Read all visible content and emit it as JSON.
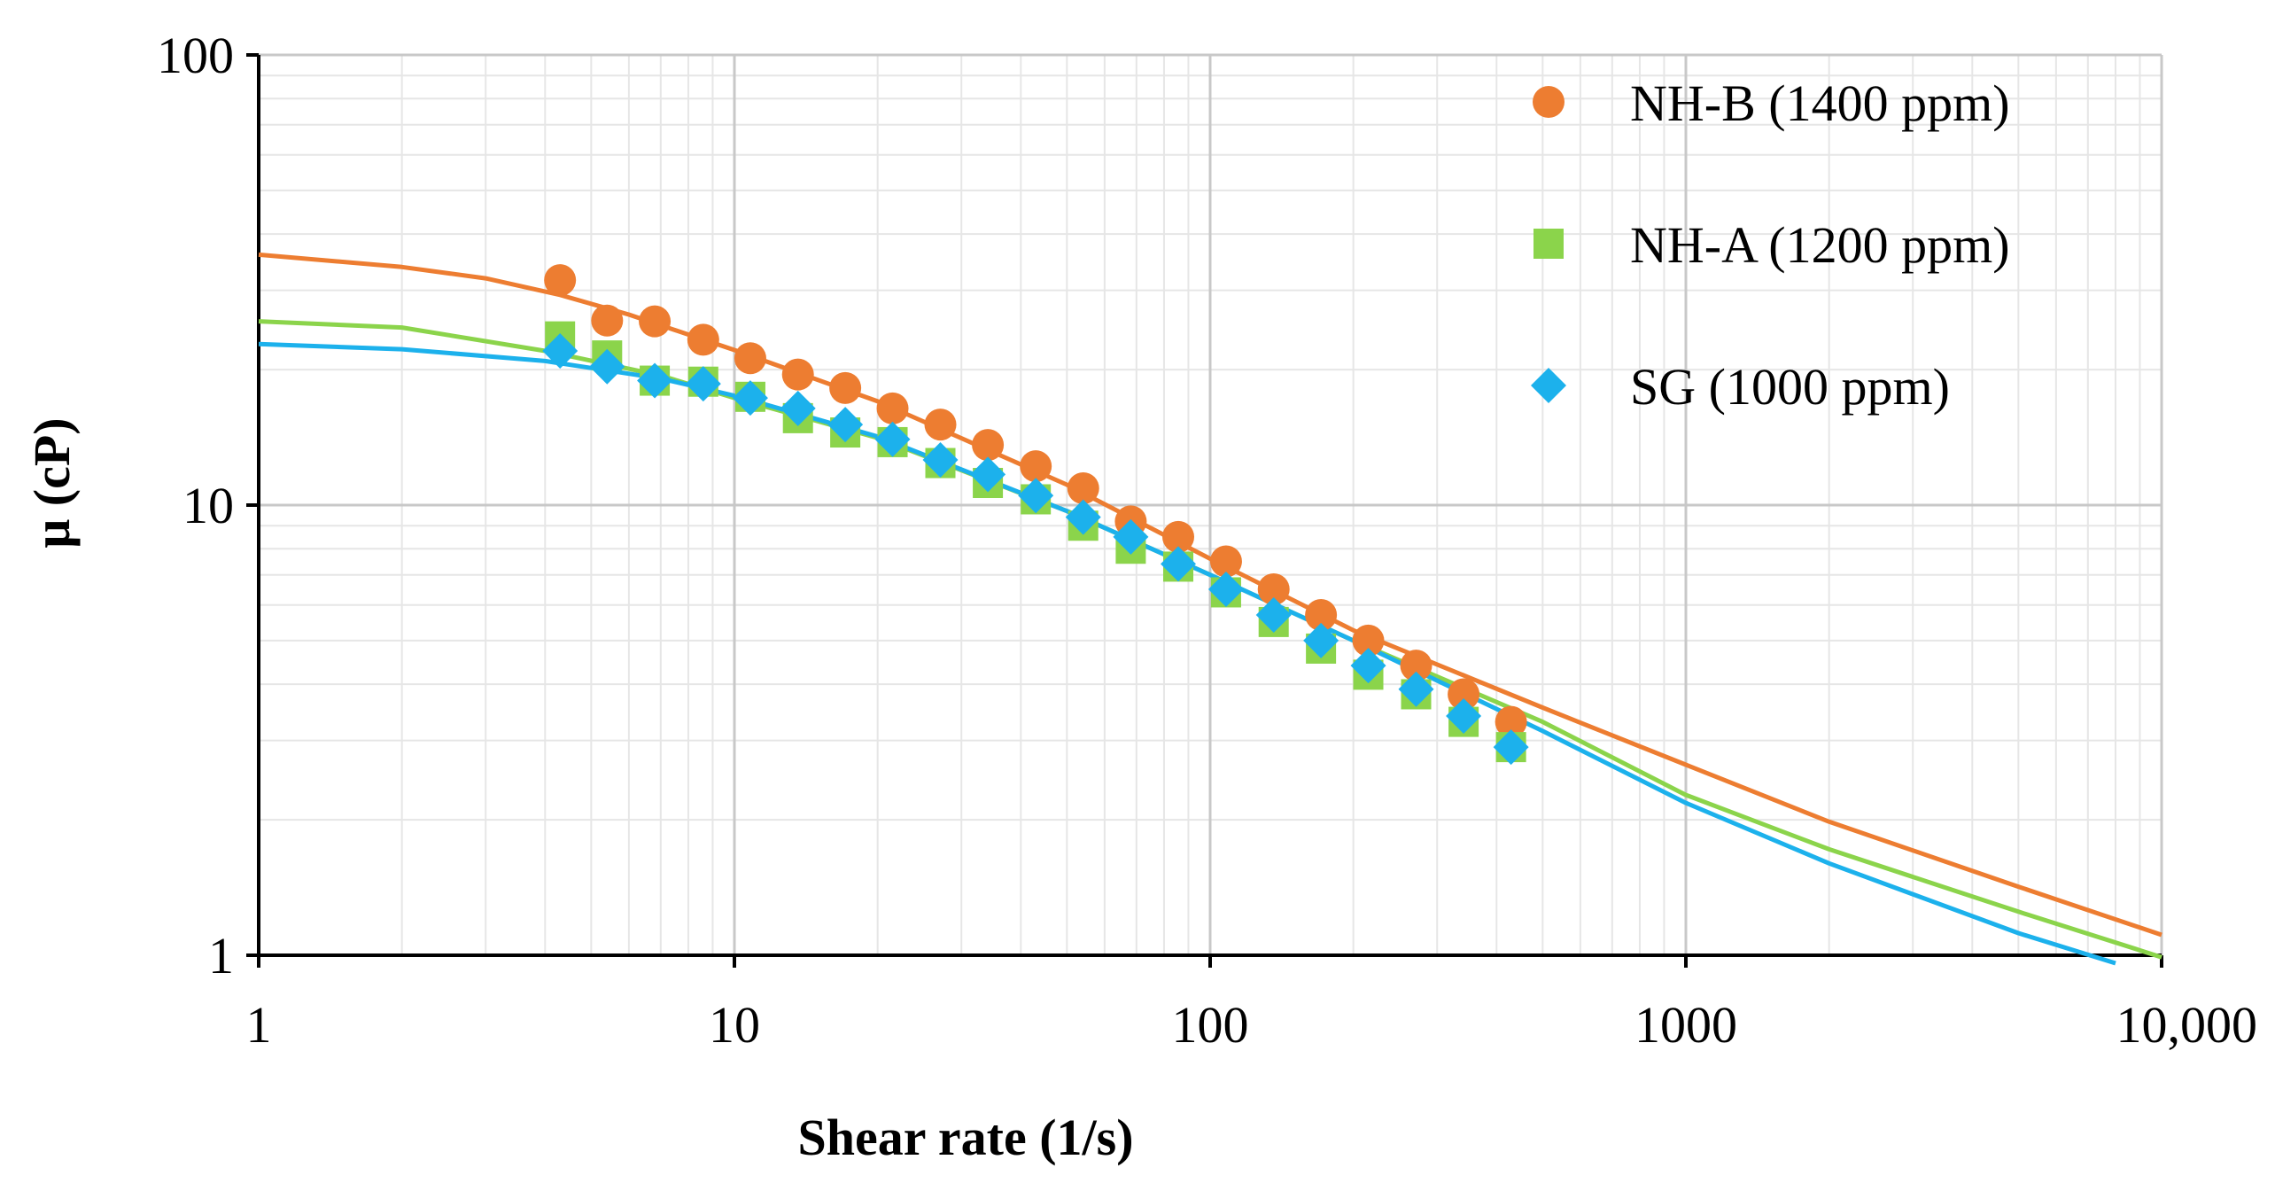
{
  "chart_data": {
    "type": "scatter",
    "xscale": "log",
    "yscale": "log",
    "xlim": [
      1,
      10000
    ],
    "ylim": [
      1,
      100
    ],
    "xlabel": "Shear rate (1/s)",
    "ylabel": "μ (cP)",
    "x_ticks": [
      {
        "value": 1,
        "label": "1"
      },
      {
        "value": 10,
        "label": "10"
      },
      {
        "value": 100,
        "label": "100"
      },
      {
        "value": 1000,
        "label": "1000"
      },
      {
        "value": 10000,
        "label": "10,000"
      }
    ],
    "y_ticks": [
      {
        "value": 1,
        "label": "1"
      },
      {
        "value": 10,
        "label": "10"
      },
      {
        "value": 100,
        "label": "100"
      }
    ],
    "grid": true,
    "legend_position": "top-right",
    "series": [
      {
        "name": "NH-B (1400 ppm)",
        "color": "#ED7D31",
        "marker": "circle",
        "x": [
          4.3,
          5.4,
          6.8,
          8.6,
          10.8,
          13.6,
          17.1,
          21.5,
          27.1,
          34.1,
          43,
          54.1,
          68.1,
          85.7,
          108,
          136,
          171,
          215,
          271,
          341,
          429
        ],
        "y": [
          31.6,
          25.7,
          25.6,
          23.3,
          21.2,
          19.5,
          18.2,
          16.4,
          15.1,
          13.6,
          12.2,
          10.9,
          9.2,
          8.5,
          7.5,
          6.5,
          5.7,
          5.0,
          4.4,
          3.8,
          3.3
        ],
        "fit_x": [
          1,
          2,
          3,
          4.3,
          6,
          10,
          20,
          50,
          100,
          200,
          500,
          1000,
          2000,
          5000,
          10000
        ],
        "fit_y": [
          36,
          33.8,
          31.9,
          29.3,
          26.5,
          22.1,
          17.0,
          11.1,
          7.6,
          5.27,
          3.55,
          2.65,
          1.98,
          1.42,
          1.11
        ]
      },
      {
        "name": "NH-A (1200 ppm)",
        "color": "#8BD44B",
        "marker": "square",
        "x": [
          4.3,
          5.4,
          6.8,
          8.6,
          10.8,
          13.6,
          17.1,
          21.5,
          27.1,
          34.1,
          43,
          54.1,
          68.1,
          85.7,
          108,
          136,
          171,
          215,
          271,
          341,
          429
        ],
        "y": [
          23.7,
          21.5,
          18.9,
          18.8,
          17.4,
          15.6,
          14.5,
          13.8,
          12.4,
          11.2,
          10.3,
          9.0,
          8.0,
          7.3,
          6.4,
          5.5,
          4.8,
          4.2,
          3.8,
          3.3,
          2.9
        ],
        "fit_x": [
          1,
          2,
          4,
          7,
          10,
          20,
          50,
          100,
          200,
          500,
          1000,
          2000,
          5000,
          10000
        ],
        "fit_y": [
          25.6,
          24.8,
          22.0,
          19.4,
          17.3,
          14.1,
          9.7,
          7.0,
          5.0,
          3.3,
          2.27,
          1.72,
          1.25,
          0.99
        ]
      },
      {
        "name": "SG (1000 ppm)",
        "color": "#1CB1EC",
        "marker": "diamond",
        "x": [
          4.3,
          5.4,
          6.8,
          8.6,
          10.8,
          13.6,
          17.1,
          21.5,
          27.1,
          34.1,
          43,
          54.1,
          68.1,
          85.7,
          108,
          136,
          171,
          215,
          271,
          341,
          429
        ],
        "y": [
          22.0,
          20.3,
          18.9,
          18.6,
          17.3,
          16.4,
          15.1,
          14.0,
          12.6,
          11.7,
          10.5,
          9.4,
          8.5,
          7.4,
          6.5,
          5.7,
          5.0,
          4.4,
          3.9,
          3.4,
          2.9
        ],
        "fit_x": [
          1,
          2,
          4,
          7,
          10,
          20,
          50,
          100,
          200,
          500,
          1000,
          2000,
          5000,
          8000
        ],
        "fit_y": [
          22.8,
          22.2,
          20.9,
          19.1,
          17.5,
          14.2,
          9.7,
          7.0,
          5.0,
          3.15,
          2.18,
          1.6,
          1.12,
          0.96
        ]
      }
    ]
  }
}
